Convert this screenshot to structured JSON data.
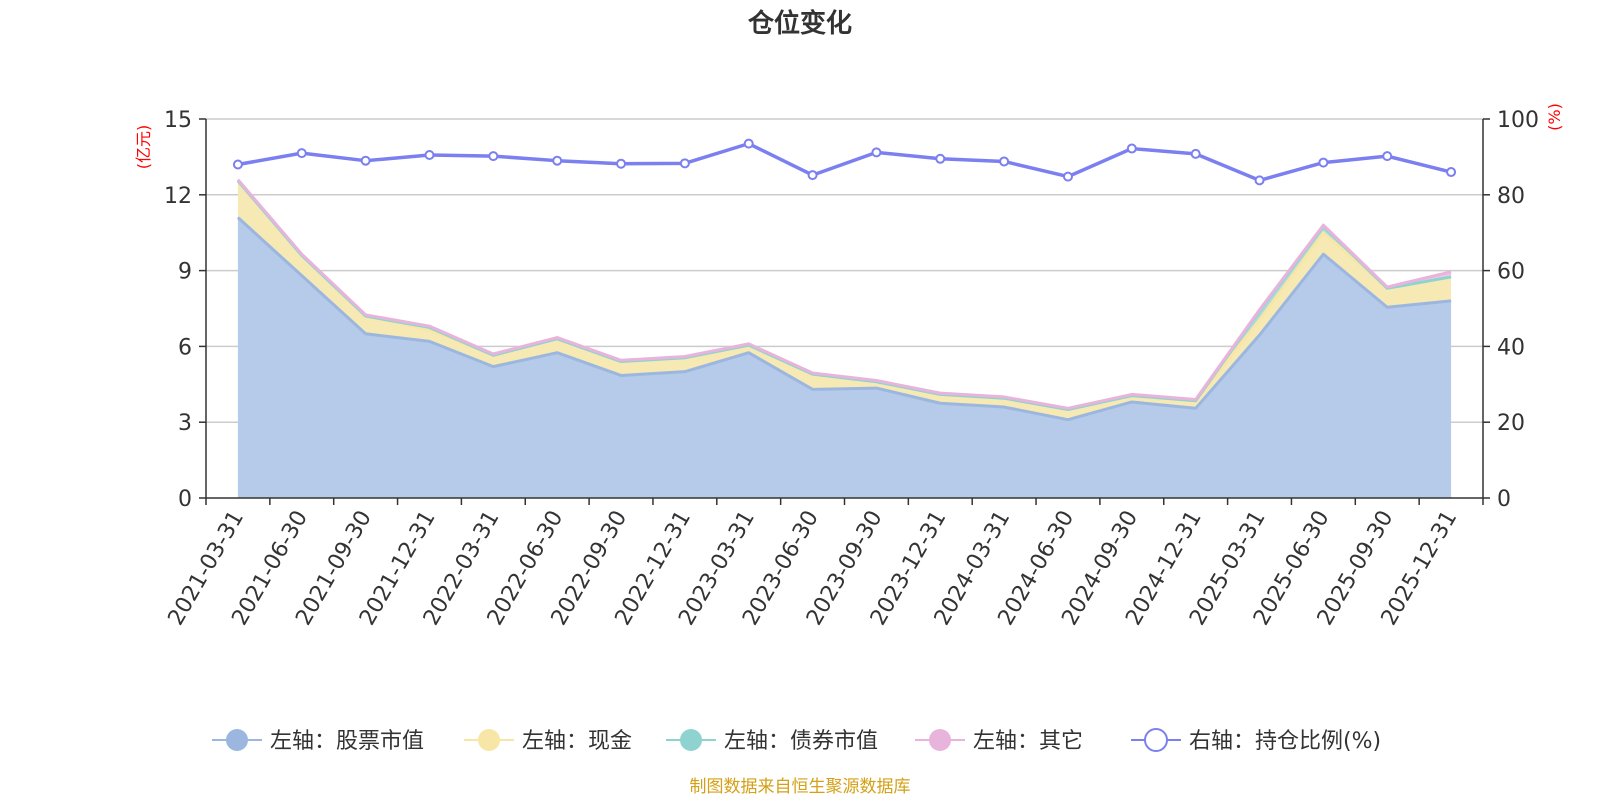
{
  "chart_data": {
    "type": "area",
    "title": "仓位变化",
    "left_axis_unit": "(亿元)",
    "right_axis_unit": "(%)",
    "left_ylim": [
      0,
      15
    ],
    "left_ticks": [
      0,
      3,
      6,
      9,
      12,
      15
    ],
    "right_ylim": [
      0,
      100
    ],
    "right_ticks": [
      0,
      20,
      40,
      60,
      80,
      100
    ],
    "categories": [
      "2021-03-31",
      "2021-06-30",
      "2021-09-30",
      "2021-12-31",
      "2022-03-31",
      "2022-06-30",
      "2022-09-30",
      "2022-12-31",
      "2023-03-31",
      "2023-06-30",
      "2023-09-30",
      "2023-12-31",
      "2024-03-31",
      "2024-06-30",
      "2024-09-30",
      "2024-12-31",
      "2025-03-31",
      "2025-06-30",
      "2025-09-30",
      "2025-12-31"
    ],
    "series": [
      {
        "name": "左轴：股票市值",
        "axis": "left",
        "stacked": true,
        "color": "#9bb7e0",
        "fill": "#b6cae9",
        "values": [
          11.1,
          8.8,
          6.5,
          6.2,
          5.2,
          5.75,
          4.85,
          5.0,
          5.75,
          4.3,
          4.35,
          3.75,
          3.6,
          3.1,
          3.8,
          3.55,
          6.45,
          9.65,
          7.55,
          7.8
        ]
      },
      {
        "name": "左轴：现金",
        "axis": "left",
        "stacked": true,
        "color": "#f7e6a6",
        "fill": "#f7e9b3",
        "values": [
          1.45,
          0.8,
          0.7,
          0.45,
          0.45,
          0.55,
          0.55,
          0.55,
          0.3,
          0.6,
          0.25,
          0.35,
          0.35,
          0.4,
          0.25,
          0.3,
          0.6,
          0.85,
          0.75,
          0.95
        ]
      },
      {
        "name": "左轴：债券市值",
        "axis": "left",
        "stacked": true,
        "color": "#8fd3d1",
        "fill": "#a9dcda",
        "values": [
          0.0,
          0.0,
          0.0,
          0.1,
          0.0,
          0.0,
          0.0,
          0.0,
          0.0,
          0.0,
          0.0,
          0.0,
          0.0,
          0.0,
          0.0,
          0.0,
          0.35,
          0.25,
          0.0,
          0.0
        ]
      },
      {
        "name": "左轴：其它",
        "axis": "left",
        "stacked": true,
        "color": "#e8b4dc",
        "fill": "#eec6e6",
        "values": [
          0.05,
          0.05,
          0.05,
          0.05,
          0.05,
          0.05,
          0.05,
          0.05,
          0.05,
          0.05,
          0.05,
          0.05,
          0.05,
          0.05,
          0.05,
          0.05,
          0.05,
          0.05,
          0.05,
          0.2
        ]
      },
      {
        "name": "右轴：持仓比例(%)",
        "axis": "right",
        "stacked": false,
        "color": "#7b7ff0",
        "values": [
          88,
          91,
          89,
          90.5,
          90.2,
          89,
          88.2,
          88.3,
          93.5,
          85.2,
          91.2,
          89.5,
          88.8,
          84.8,
          92.2,
          90.8,
          83.8,
          88.5,
          90.2,
          86
        ]
      }
    ],
    "legend_position": "bottom",
    "grid": true
  },
  "footer": {
    "source": "制图数据来自恒生聚源数据库"
  }
}
